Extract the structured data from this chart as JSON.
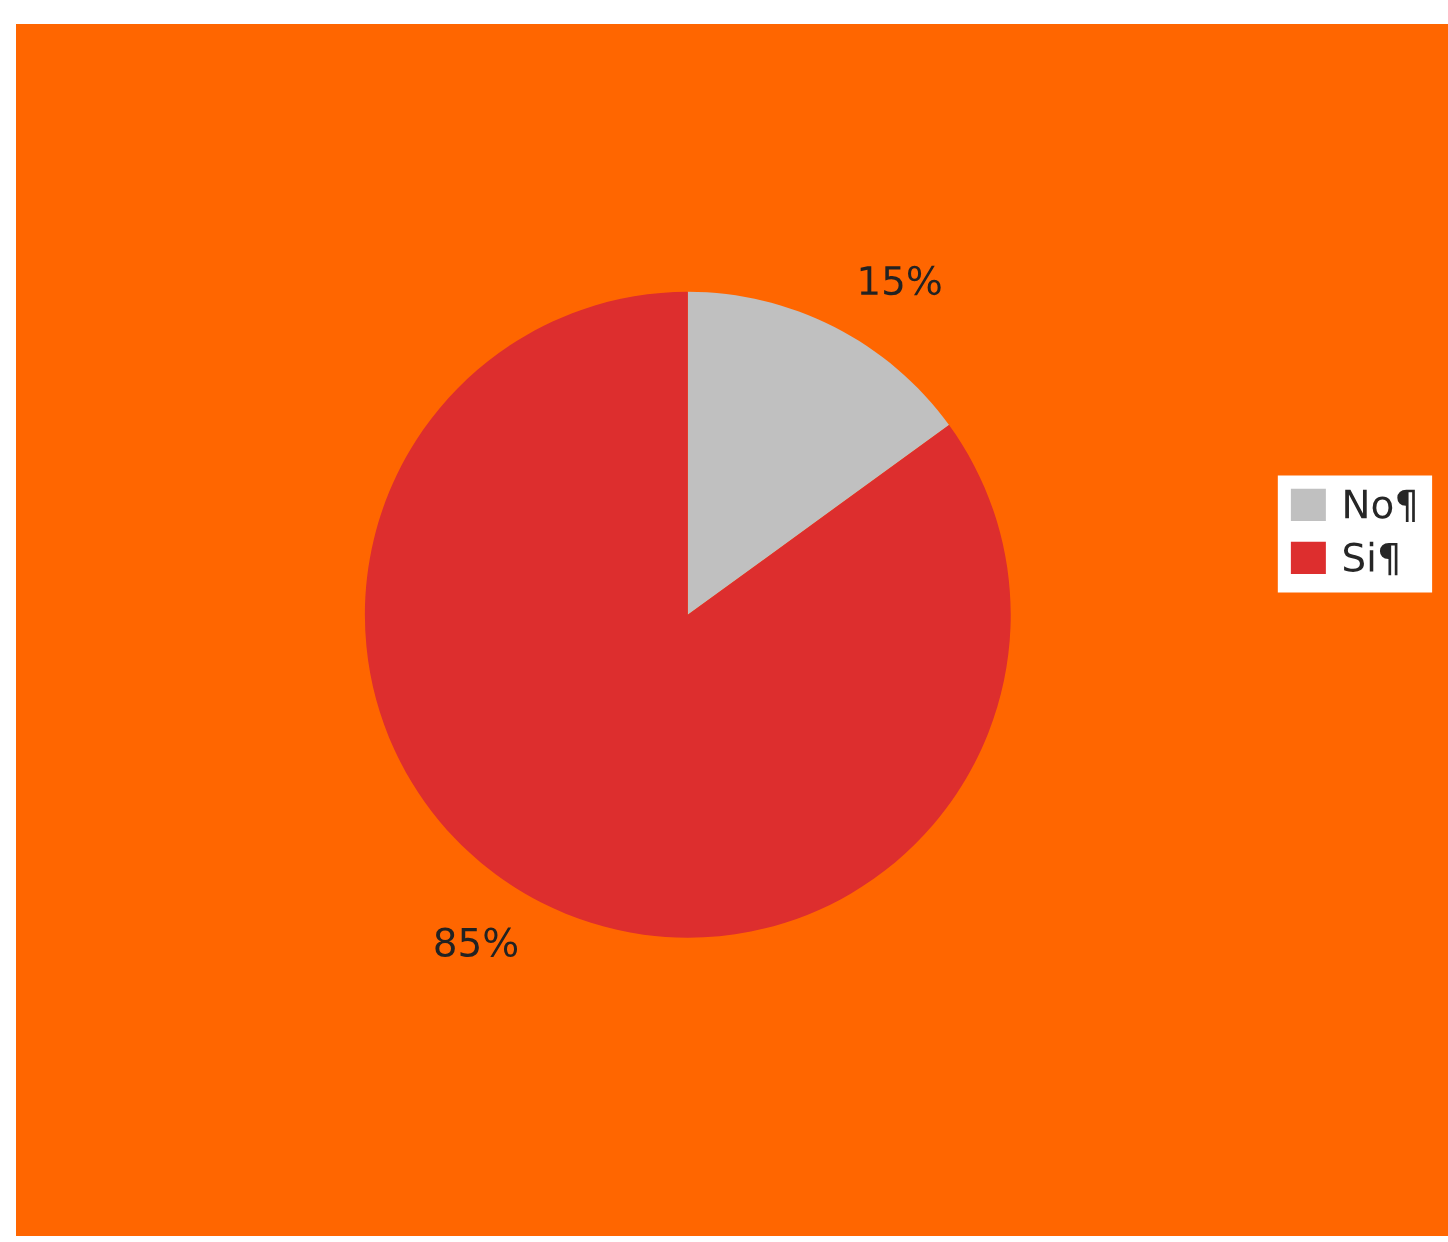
{
  "chart_data": {
    "type": "pie",
    "categories": [
      "No¶",
      "Si¶"
    ],
    "values": [
      15,
      85
    ],
    "colors": [
      "#c0c0c0",
      "#dd2e2e"
    ],
    "value_labels": [
      "15%",
      "85%"
    ],
    "legend": "right"
  }
}
